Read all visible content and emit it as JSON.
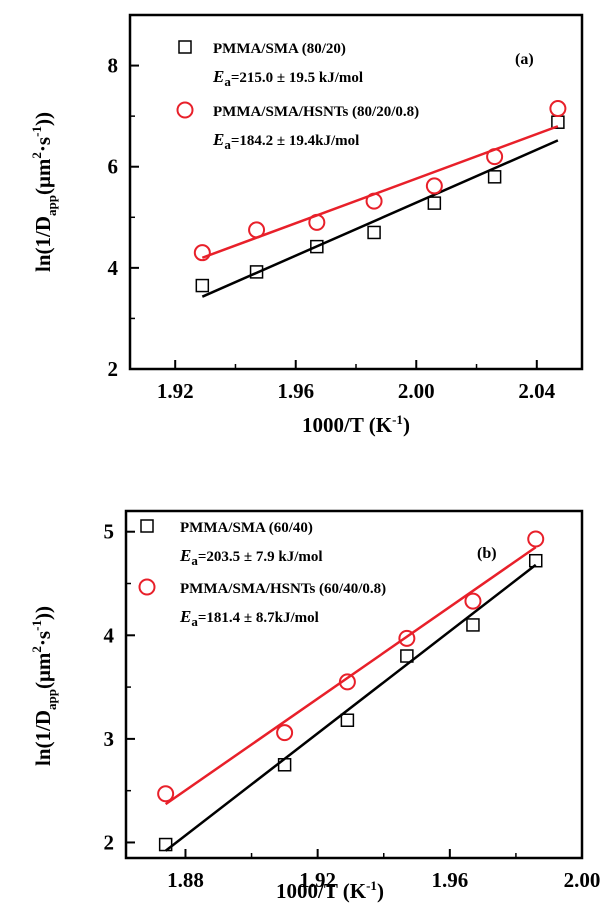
{
  "chart_data": [
    {
      "panel": "a",
      "type": "scatter",
      "xlabel": "1000/T (K",
      "xlabel_sup": "-1",
      "xlabel_close": ")",
      "ylabel": "ln(1/D",
      "ylabel_sub": "app",
      "ylabel_units": "(μm",
      "ylabel_sup1": "2",
      "ylabel_mid": "·s",
      "ylabel_sup2": "-1",
      "ylabel_close": "))",
      "xlim": [
        1.905,
        2.055
      ],
      "ylim": [
        2,
        9
      ],
      "x_ticks": [
        1.92,
        1.96,
        2.0,
        2.04
      ],
      "x_tick_labels": [
        "1.92",
        "1.96",
        "2.00",
        "2.04"
      ],
      "y_ticks": [
        2,
        4,
        6,
        8
      ],
      "y_tick_labels": [
        "2",
        "4",
        "6",
        "8"
      ],
      "annotation": "(a)",
      "series": [
        {
          "name": "PMMA/SMA (80/20)",
          "ea_label": "E",
          "ea_sub": "a",
          "ea_value": "=215.0 ± 19.5 kJ/mol",
          "marker": "square",
          "color": "#000000",
          "x": [
            1.929,
            1.947,
            1.967,
            1.986,
            2.006,
            2.026,
            2.047
          ],
          "y": [
            3.65,
            3.92,
            4.42,
            4.7,
            5.28,
            5.8,
            6.88
          ],
          "fit": [
            [
              1.929,
              3.43
            ],
            [
              2.047,
              6.52
            ]
          ]
        },
        {
          "name": "PMMA/SMA/HSNTs (80/20/0.8)",
          "ea_label": "E",
          "ea_sub": "a",
          "ea_value": "=184.2 ± 19.4kJ/mol",
          "marker": "circle",
          "color": "#e8202a",
          "x": [
            1.929,
            1.947,
            1.967,
            1.986,
            2.006,
            2.026,
            2.047
          ],
          "y": [
            4.3,
            4.75,
            4.9,
            5.32,
            5.62,
            6.2,
            7.15
          ],
          "fit": [
            [
              1.929,
              4.2
            ],
            [
              2.047,
              6.8
            ]
          ]
        }
      ]
    },
    {
      "panel": "b",
      "type": "scatter",
      "xlabel": "1000/T (K",
      "xlabel_sup": "-1",
      "xlabel_close": ")",
      "ylabel": "ln(1/D",
      "ylabel_sub": "app",
      "ylabel_units": "(μm",
      "ylabel_sup1": "2",
      "ylabel_mid": "·s",
      "ylabel_sup2": "-1",
      "ylabel_close": "))",
      "xlim": [
        1.862,
        2.0
      ],
      "ylim": [
        1.85,
        5.2
      ],
      "x_ticks": [
        1.88,
        1.92,
        1.96,
        2.0
      ],
      "x_tick_labels": [
        "1.88",
        "1.92",
        "1.96",
        "2.00"
      ],
      "y_ticks": [
        2,
        3,
        4,
        5
      ],
      "y_tick_labels": [
        "2",
        "3",
        "4",
        "5"
      ],
      "annotation": "(b)",
      "series": [
        {
          "name": "PMMA/SMA (60/40)",
          "ea_label": "E",
          "ea_sub": "a",
          "ea_value": "=203.5 ± 7.9 kJ/mol",
          "marker": "square",
          "color": "#000000",
          "x": [
            1.874,
            1.91,
            1.929,
            1.947,
            1.967,
            1.986
          ],
          "y": [
            1.98,
            2.75,
            3.18,
            3.8,
            4.1,
            4.72
          ],
          "fit": [
            [
              1.874,
              1.92
            ],
            [
              1.986,
              4.68
            ]
          ]
        },
        {
          "name": "PMMA/SMA/HSNTs (60/40/0.8)",
          "ea_label": "E",
          "ea_sub": "a",
          "ea_value": "=181.4 ± 8.7kJ/mol",
          "marker": "circle",
          "color": "#e8202a",
          "x": [
            1.874,
            1.91,
            1.929,
            1.947,
            1.967,
            1.986
          ],
          "y": [
            2.47,
            3.06,
            3.55,
            3.97,
            4.33,
            4.93
          ],
          "fit": [
            [
              1.874,
              2.37
            ],
            [
              1.986,
              4.85
            ]
          ]
        }
      ]
    }
  ]
}
